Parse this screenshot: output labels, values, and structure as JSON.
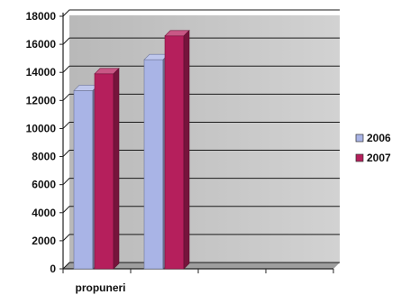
{
  "chart_data": {
    "type": "bar",
    "title": "",
    "xlabel": "",
    "ylabel": "",
    "categories": [
      "propuneri",
      "",
      "",
      ""
    ],
    "series": [
      {
        "name": "2006",
        "color": "#a9b4e6",
        "values": [
          12700,
          14900,
          null,
          null
        ]
      },
      {
        "name": "2007",
        "color": "#b51f5c",
        "values": [
          13900,
          16600,
          null,
          null
        ]
      }
    ],
    "ylim": [
      0,
      18000
    ],
    "yticks": [
      0,
      2000,
      4000,
      6000,
      8000,
      10000,
      12000,
      14000,
      16000,
      18000
    ],
    "grid": true,
    "legend_position": "right",
    "bar_style": "3d",
    "plot_background": "#c4c4c4"
  }
}
